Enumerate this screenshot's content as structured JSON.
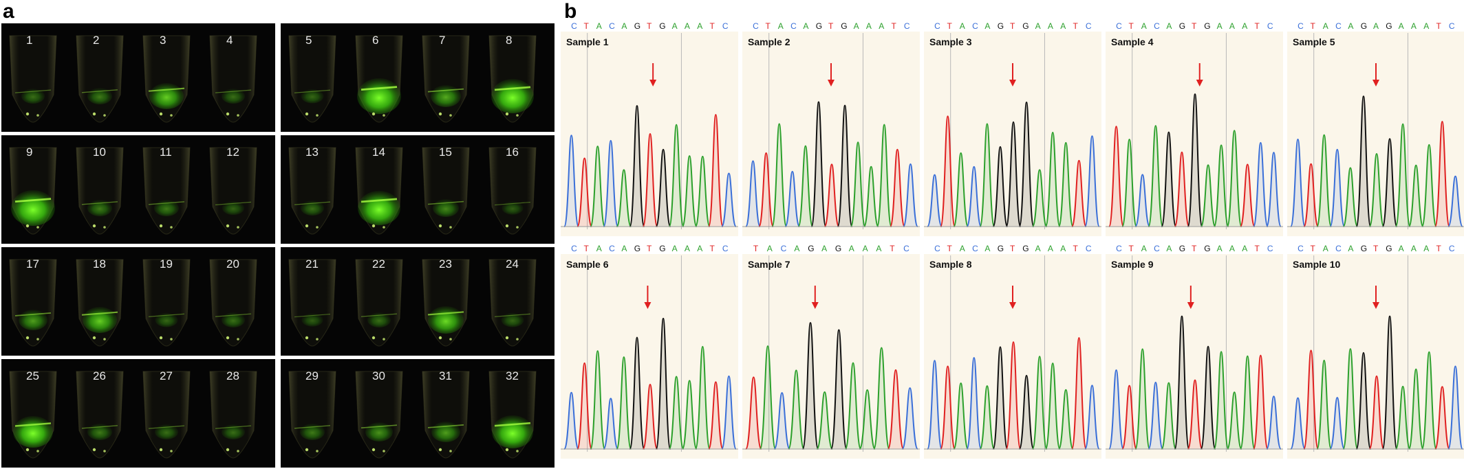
{
  "figure": {
    "panel_a_label": "a",
    "panel_b_label": "b"
  },
  "panel_a": {
    "rows": [
      {
        "tubes": [
          {
            "label": "1",
            "glow": 0.15
          },
          {
            "label": "2",
            "glow": 0.2
          },
          {
            "label": "3",
            "glow": 0.55
          },
          {
            "label": "4",
            "glow": 0.15
          },
          {
            "label": "5",
            "glow": 0.12
          },
          {
            "label": "6",
            "glow": 0.9
          },
          {
            "label": "7",
            "glow": 0.4
          },
          {
            "label": "8",
            "glow": 0.85
          }
        ]
      },
      {
        "tubes": [
          {
            "label": "9",
            "glow": 0.9
          },
          {
            "label": "10",
            "glow": 0.2
          },
          {
            "label": "11",
            "glow": 0.2
          },
          {
            "label": "12",
            "glow": 0.1
          },
          {
            "label": "13",
            "glow": 0.15
          },
          {
            "label": "14",
            "glow": 0.85
          },
          {
            "label": "15",
            "glow": 0.25
          },
          {
            "label": "16",
            "glow": 0.08
          }
        ]
      },
      {
        "tubes": [
          {
            "label": "17",
            "glow": 0.35
          },
          {
            "label": "18",
            "glow": 0.55
          },
          {
            "label": "19",
            "glow": 0.12
          },
          {
            "label": "20",
            "glow": 0.15
          },
          {
            "label": "21",
            "glow": 0.08
          },
          {
            "label": "22",
            "glow": 0.15
          },
          {
            "label": "23",
            "glow": 0.6
          },
          {
            "label": "24",
            "glow": 0.12
          }
        ]
      },
      {
        "tubes": [
          {
            "label": "25",
            "glow": 0.75
          },
          {
            "label": "26",
            "glow": 0.2
          },
          {
            "label": "27",
            "glow": 0.15
          },
          {
            "label": "28",
            "glow": 0.15
          },
          {
            "label": "29",
            "glow": 0.2
          },
          {
            "label": "30",
            "glow": 0.3
          },
          {
            "label": "31",
            "glow": 0.35
          },
          {
            "label": "32",
            "glow": 0.8
          }
        ]
      }
    ]
  },
  "panel_b": {
    "base_colors": {
      "A": "#2ca02c",
      "C": "#3a6fd8",
      "G": "#111111",
      "T": "#e02020"
    },
    "arrow_color": "#e02020",
    "samples": [
      {
        "label": "Sample 1",
        "sequence": [
          "C",
          "T",
          "A",
          "C",
          "A",
          "G",
          "T",
          "G",
          "A",
          "A",
          "A",
          "T",
          "C"
        ],
        "peak_seq": [
          "C",
          "T",
          "A",
          "C",
          "A",
          "G",
          "T",
          "G",
          "A",
          "A",
          "A",
          "T",
          "C"
        ],
        "arrow_pos": 0.52
      },
      {
        "label": "Sample 2",
        "sequence": [
          "C",
          "T",
          "A",
          "C",
          "A",
          "G",
          "T",
          "G",
          "A",
          "A",
          "A",
          "T",
          "C"
        ],
        "peak_seq": [
          "C",
          "T",
          "A",
          "C",
          "A",
          "G",
          "T",
          "G",
          "A",
          "A",
          "A",
          "T",
          "C"
        ],
        "arrow_pos": 0.5
      },
      {
        "label": "Sample 3",
        "sequence": [
          "C",
          "T",
          "A",
          "C",
          "A",
          "G",
          "T",
          "G",
          "A",
          "A",
          "A",
          "T",
          "C"
        ],
        "peak_seq": [
          "C",
          "T",
          "A",
          "C",
          "A",
          "G",
          "G",
          "G",
          "A",
          "A",
          "A",
          "T",
          "C"
        ],
        "arrow_pos": 0.5
      },
      {
        "label": "Sample 4",
        "sequence": [
          "C",
          "T",
          "A",
          "C",
          "A",
          "G",
          "T",
          "G",
          "A",
          "A",
          "A",
          "T",
          "C"
        ],
        "peak_seq": [
          "T",
          "A",
          "C",
          "A",
          "G",
          "T",
          "G",
          "A",
          "A",
          "A",
          "T",
          "C",
          "C"
        ],
        "arrow_pos": 0.53
      },
      {
        "label": "Sample 5",
        "sequence": [
          "C",
          "T",
          "A",
          "C",
          "A",
          "G",
          "A",
          "G",
          "A",
          "A",
          "A",
          "T",
          "C"
        ],
        "peak_seq": [
          "C",
          "T",
          "A",
          "C",
          "A",
          "G",
          "A",
          "G",
          "A",
          "A",
          "A",
          "T",
          "C"
        ],
        "arrow_pos": 0.5
      },
      {
        "label": "Sample 6",
        "sequence": [
          "C",
          "T",
          "A",
          "C",
          "A",
          "G",
          "T",
          "G",
          "A",
          "A",
          "A",
          "T",
          "C"
        ],
        "peak_seq": [
          "C",
          "T",
          "A",
          "C",
          "A",
          "G",
          "T",
          "G",
          "A",
          "A",
          "A",
          "T",
          "C"
        ],
        "arrow_pos": 0.49
      },
      {
        "label": "Sample 7",
        "sequence": [
          "T",
          "A",
          "C",
          "A",
          "G",
          "A",
          "G",
          "A",
          "A",
          "A",
          "T",
          "C"
        ],
        "peak_seq": [
          "T",
          "A",
          "C",
          "A",
          "G",
          "A",
          "G",
          "A",
          "A",
          "A",
          "T",
          "C"
        ],
        "arrow_pos": 0.41
      },
      {
        "label": "Sample 8",
        "sequence": [
          "C",
          "T",
          "A",
          "C",
          "A",
          "G",
          "T",
          "G",
          "A",
          "A",
          "A",
          "T",
          "C"
        ],
        "peak_seq": [
          "C",
          "T",
          "A",
          "C",
          "A",
          "G",
          "T",
          "G",
          "A",
          "A",
          "A",
          "T",
          "C"
        ],
        "arrow_pos": 0.5
      },
      {
        "label": "Sample 9",
        "sequence": [
          "C",
          "T",
          "A",
          "C",
          "A",
          "G",
          "T",
          "G",
          "A",
          "A",
          "A",
          "T",
          "C"
        ],
        "peak_seq": [
          "C",
          "T",
          "A",
          "C",
          "A",
          "G",
          "T",
          "G",
          "A",
          "A",
          "A",
          "T",
          "C"
        ],
        "arrow_pos": 0.48
      },
      {
        "label": "Sample 10",
        "sequence": [
          "C",
          "T",
          "A",
          "C",
          "A",
          "G",
          "T",
          "G",
          "A",
          "A",
          "A",
          "T",
          "C"
        ],
        "peak_seq": [
          "C",
          "T",
          "A",
          "C",
          "A",
          "G",
          "T",
          "G",
          "A",
          "A",
          "A",
          "T",
          "C"
        ],
        "arrow_pos": 0.5
      }
    ]
  }
}
